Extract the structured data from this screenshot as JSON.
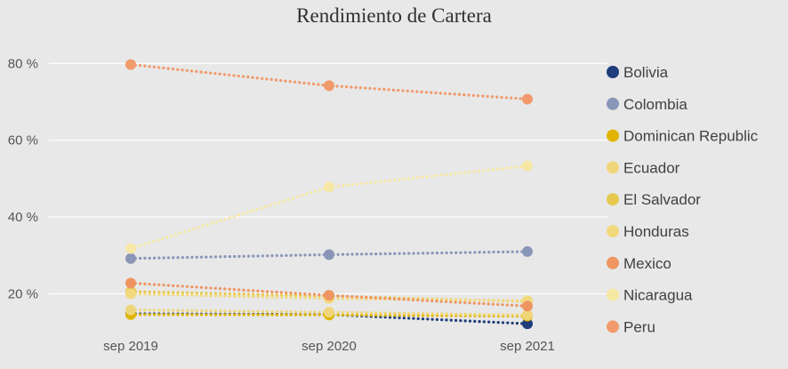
{
  "chart_data": {
    "type": "line",
    "title": "Rendimiento de Cartera",
    "xlabel": "",
    "ylabel": "",
    "categories": [
      "sep 2019",
      "sep 2020",
      "sep 2021"
    ],
    "y_ticks": [
      20,
      40,
      60,
      80
    ],
    "y_tick_labels": [
      "20 %",
      "40 %",
      "60 %",
      "80 %"
    ],
    "ylim": [
      12,
      84
    ],
    "grid": true,
    "legend_position": "right",
    "series": [
      {
        "name": "Bolivia",
        "color": "#1f3d7a",
        "values": [
          14.8,
          14.6,
          12.2
        ]
      },
      {
        "name": "Colombia",
        "color": "#8a96b8",
        "values": [
          29.2,
          30.2,
          31.0
        ]
      },
      {
        "name": "Dominican Republic",
        "color": "#e0b400",
        "values": [
          14.6,
          14.5,
          14.2
        ]
      },
      {
        "name": "Ecuador",
        "color": "#f0d67a",
        "values": [
          15.8,
          15.2,
          14.5
        ]
      },
      {
        "name": "El Salvador",
        "color": "#e6c94e",
        "values": [
          20.6,
          19.4,
          18.0
        ]
      },
      {
        "name": "Honduras",
        "color": "#f2d97e",
        "values": [
          20.0,
          18.8,
          18.2
        ]
      },
      {
        "name": "Mexico",
        "color": "#ee9562",
        "values": [
          22.8,
          19.6,
          16.8
        ]
      },
      {
        "name": "Nicaragua",
        "color": "#f6e7a4",
        "values": [
          31.8,
          47.8,
          53.3
        ]
      },
      {
        "name": "Peru",
        "color": "#f19a6c",
        "values": [
          79.7,
          74.2,
          70.7
        ]
      }
    ]
  }
}
